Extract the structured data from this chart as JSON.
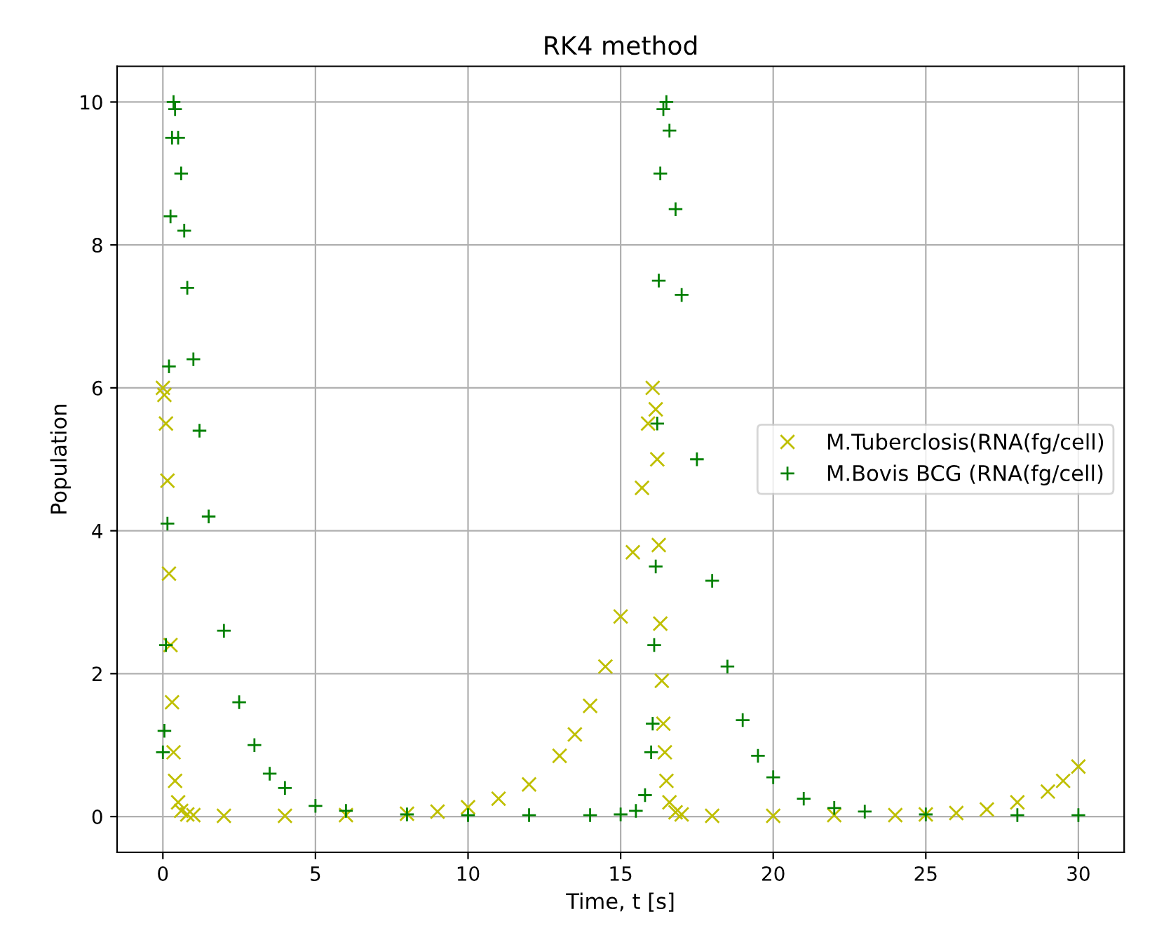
{
  "chart_data": {
    "type": "scatter",
    "title": "RK4 method",
    "xlabel": "Time, t [s]",
    "ylabel": "Population",
    "xlim": [
      -1.5,
      31.5
    ],
    "ylim": [
      -0.5,
      10.5
    ],
    "xticks": [
      0,
      5,
      10,
      15,
      20,
      25,
      30
    ],
    "yticks": [
      0,
      2,
      4,
      6,
      8,
      10
    ],
    "grid": true,
    "legend": "right",
    "series": [
      {
        "name": "M.Tuberclosis(RNA(fg/cell)",
        "color": "#bfbf00",
        "marker": "cross",
        "x": [
          0,
          0.05,
          0.1,
          0.15,
          0.2,
          0.25,
          0.3,
          0.35,
          0.4,
          0.5,
          0.6,
          0.8,
          1,
          2,
          4,
          6,
          8,
          9,
          10,
          11,
          12,
          13,
          13.5,
          14,
          14.5,
          15,
          15.4,
          15.7,
          15.9,
          16.05,
          16.15,
          16.2,
          16.25,
          16.3,
          16.35,
          16.4,
          16.45,
          16.5,
          16.6,
          16.8,
          17,
          18,
          20,
          22,
          24,
          25,
          26,
          27,
          28,
          29,
          29.5,
          30
        ],
        "values": [
          6.0,
          5.9,
          5.5,
          4.7,
          3.4,
          2.4,
          1.6,
          0.9,
          0.5,
          0.2,
          0.08,
          0.03,
          0.02,
          0.01,
          0.01,
          0.02,
          0.04,
          0.07,
          0.13,
          0.25,
          0.45,
          0.85,
          1.15,
          1.55,
          2.1,
          2.8,
          3.7,
          4.6,
          5.5,
          6.0,
          5.7,
          5.0,
          3.8,
          2.7,
          1.9,
          1.3,
          0.9,
          0.5,
          0.2,
          0.06,
          0.03,
          0.01,
          0.01,
          0.02,
          0.02,
          0.03,
          0.05,
          0.1,
          0.2,
          0.35,
          0.5,
          0.7
        ]
      },
      {
        "name": "M.Bovis BCG (RNA(fg/cell)",
        "color": "#008000",
        "marker": "plus",
        "x": [
          0,
          0.05,
          0.1,
          0.15,
          0.2,
          0.25,
          0.3,
          0.35,
          0.4,
          0.5,
          0.6,
          0.7,
          0.8,
          1,
          1.2,
          1.5,
          2,
          2.5,
          3,
          3.5,
          4,
          5,
          6,
          8,
          10,
          12,
          14,
          15,
          15.5,
          15.8,
          16.0,
          16.05,
          16.1,
          16.15,
          16.2,
          16.25,
          16.3,
          16.4,
          16.5,
          16.6,
          16.8,
          17,
          17.5,
          18,
          18.5,
          19,
          19.5,
          20,
          21,
          22,
          23,
          25,
          28,
          30
        ],
        "values": [
          0.9,
          1.2,
          2.4,
          4.1,
          6.3,
          8.4,
          9.5,
          10.0,
          9.9,
          9.5,
          9.0,
          8.2,
          7.4,
          6.4,
          5.4,
          4.2,
          2.6,
          1.6,
          1.0,
          0.6,
          0.4,
          0.15,
          0.08,
          0.03,
          0.02,
          0.02,
          0.02,
          0.03,
          0.08,
          0.3,
          0.9,
          1.3,
          2.4,
          3.5,
          5.5,
          7.5,
          9.0,
          9.9,
          10.0,
          9.6,
          8.5,
          7.3,
          5.0,
          3.3,
          2.1,
          1.35,
          0.85,
          0.55,
          0.25,
          0.12,
          0.07,
          0.03,
          0.02,
          0.02
        ]
      }
    ]
  }
}
